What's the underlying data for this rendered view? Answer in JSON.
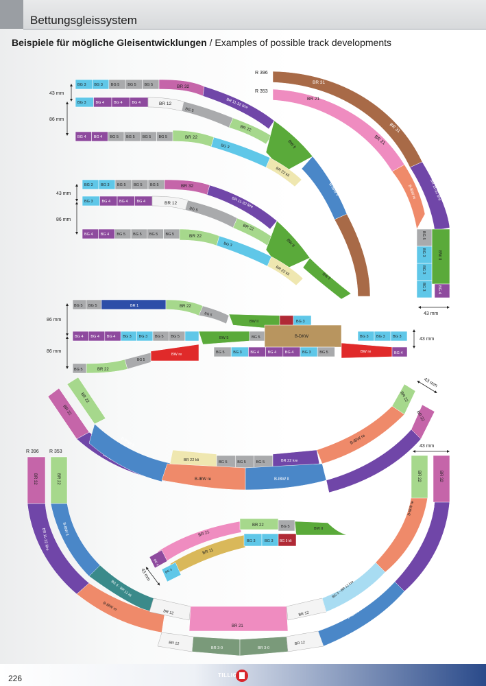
{
  "header": {
    "title": "Bettungsgleissystem"
  },
  "subtitle": {
    "german": "Beispiele für mögliche Gleisentwicklungen",
    "separator": " / ",
    "english": "Examples of possible track developments"
  },
  "dimensions": {
    "d43": "43 mm",
    "d86": "86 mm",
    "r396": "R 396",
    "r353": "R 353"
  },
  "rows": {
    "s1r1": [
      "BG 3",
      "BG 3",
      "BG 5",
      "BG 5",
      "BG 5"
    ],
    "s1r2": [
      "BG 3",
      "BG 4",
      "BG 4",
      "BG 4"
    ],
    "s1r3": [
      "BG 4",
      "BG 4",
      "BG 5",
      "BG 5",
      "BG 5",
      "BG 5"
    ],
    "s2r1": [
      "BG 3",
      "BG 3",
      "BG 5",
      "BG 5",
      "BG 5"
    ],
    "s2r2": [
      "BG 3",
      "BG 4",
      "BG 4",
      "BG 4"
    ],
    "s2r3": [
      "BG 4",
      "BG 4",
      "BG 5",
      "BG 5",
      "BG 5",
      "BG 5"
    ],
    "s3r2": [
      "BG 4",
      "BG 4",
      "BG 4",
      "BG 3",
      "BG 3",
      "BG 5",
      "BG 5"
    ],
    "s3r2b": [
      "BG 3",
      "BG 3",
      "BG 3"
    ],
    "s3r3": [
      "BG 5",
      "BG 3",
      "BG 4",
      "BG 4",
      "BG 4",
      "BG 3",
      "BG 5"
    ]
  },
  "labels": {
    "br32": "BR 32",
    "br1132": "BR 11-32 li/re",
    "br12": "BR 12",
    "bg5": "BG 5",
    "br22": "BR 22",
    "bw": "BW ll",
    "bg3": "BG 3",
    "br22kli": "BR 22 kli",
    "bibwli": "B-lBW ll",
    "br31": "BR 31",
    "br21": "BR 21",
    "bibwre": "B-lBW re",
    "bg4": "BG 4",
    "br1": "BR 1",
    "bwre": "BW re",
    "bdkw": "B-DKW",
    "br22kre": "BR 22 kre",
    "br30": "BR 3-0",
    "br11": "BR 11",
    "bg3br12kli": "BG 3 - BR 12 kli",
    "bg3br12kre": "BG 3 - BR 12 kre",
    "bg5k": "BG 5 kli",
    "bw5": "BW 5"
  },
  "arc_lower": [
    "BG 5",
    "BG 5",
    "BG 5"
  ],
  "footer": {
    "page": "226",
    "brand": "TILLIG"
  },
  "colors": {
    "bg3": "#5fc7e8",
    "bg4": "#8e4a9e",
    "bg5": "#a9aaac",
    "br32": "#c565a9",
    "br11": "#7046a8",
    "br12": "#f4f4f4",
    "br22": "#a6d88c",
    "bw": "#5aaa3a",
    "br22k": "#efe7b0",
    "bibw": "#4a87c8",
    "br31": "#a86a47",
    "br21": "#ef8cc0",
    "bibwre": "#ef8a6a",
    "red": "#e02a2a",
    "tan": "#b8955f"
  }
}
